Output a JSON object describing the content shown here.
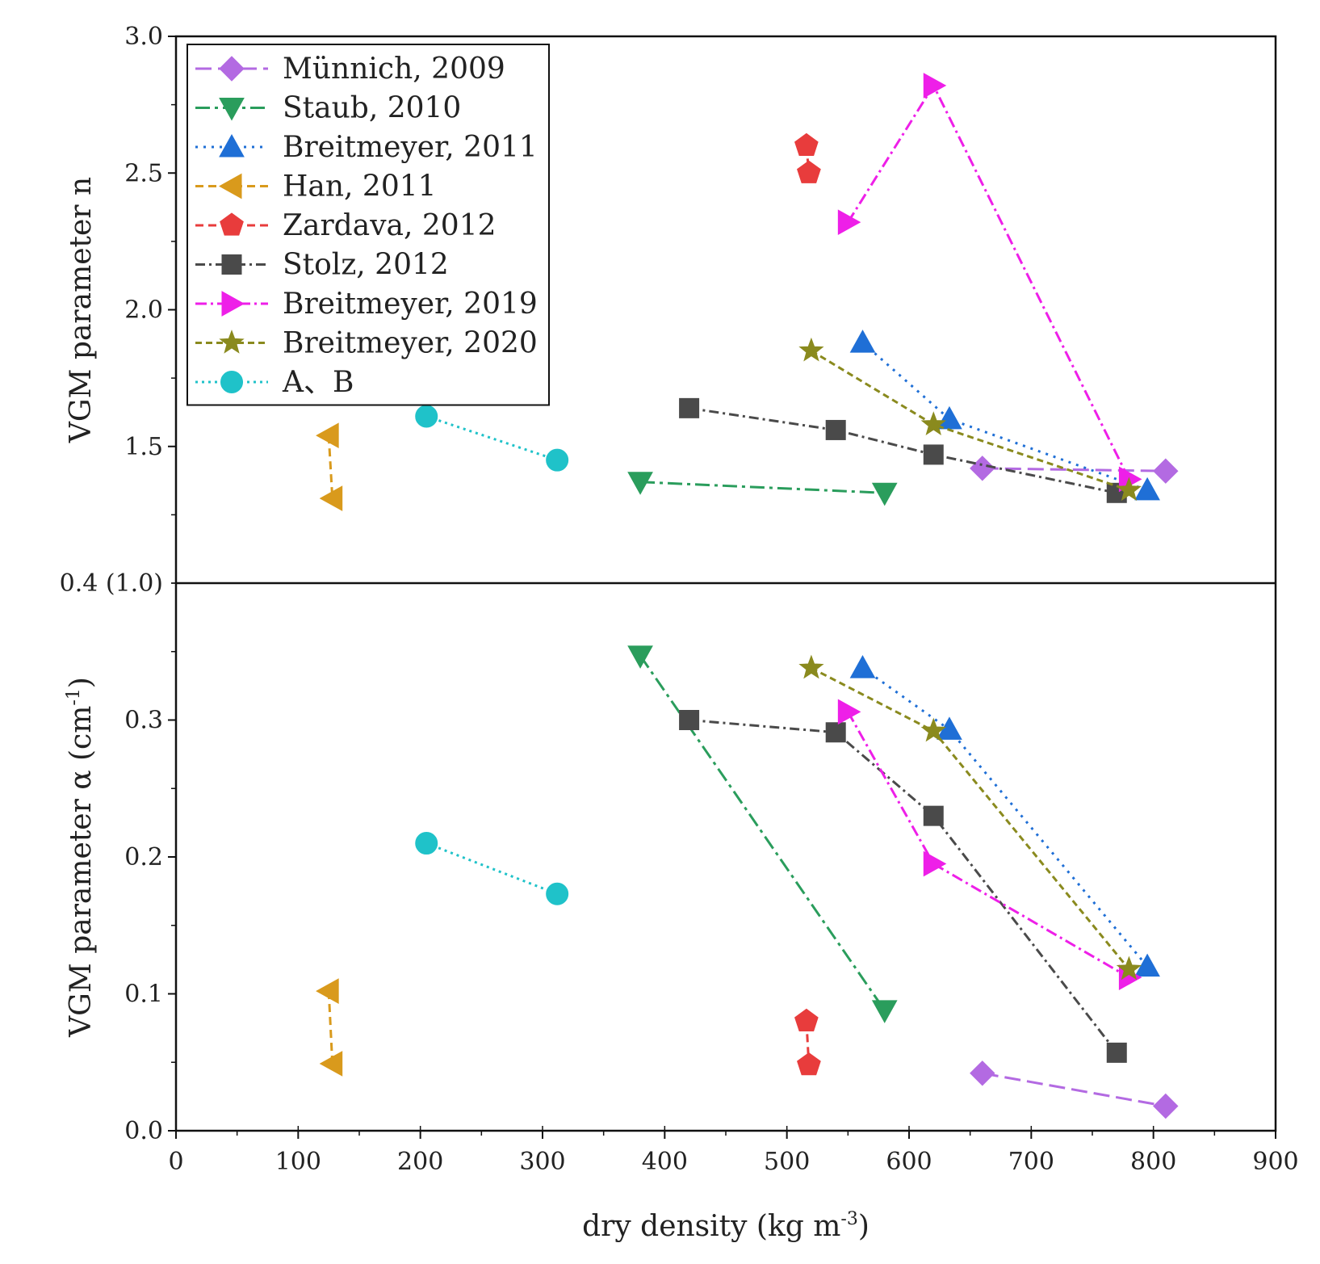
{
  "chart_data": {
    "type": "line",
    "xlabel": "dry density (kg m",
    "xlabel_sup": "-3",
    "xlabel_close": ")",
    "xlim": [
      0,
      900
    ],
    "x_ticks": [
      "0",
      "100",
      "200",
      "300",
      "400",
      "500",
      "600",
      "700",
      "800",
      "900"
    ],
    "grid": false,
    "legend_position": "top-left",
    "panels": [
      {
        "id": "n",
        "ylabel": "VGM parameter n",
        "ylim": [
          1.0,
          3.0
        ],
        "y_ticks": [
          {
            "v": 1.5,
            "t": "1.5"
          },
          {
            "v": 2.0,
            "t": "2.0"
          },
          {
            "v": 2.5,
            "t": "2.5"
          },
          {
            "v": 3.0,
            "t": "3.0"
          }
        ],
        "shared_tick_label": "0.4 (1.0)"
      },
      {
        "id": "alpha",
        "ylabel": "VGM parameter α (cm",
        "ylabel_sup": "-1",
        "ylabel_close": ")",
        "ylim": [
          0.0,
          0.4
        ],
        "y_ticks": [
          {
            "v": 0.0,
            "t": "0.0"
          },
          {
            "v": 0.1,
            "t": "0.1"
          },
          {
            "v": 0.2,
            "t": "0.2"
          },
          {
            "v": 0.3,
            "t": "0.3"
          }
        ]
      }
    ],
    "series": [
      {
        "name": "Münnich, 2009",
        "color": "#b36ae2",
        "marker": "diamond",
        "dash": "20,8",
        "x": [
          660,
          810
        ],
        "n": [
          1.42,
          1.41
        ],
        "alpha": [
          0.042,
          0.018
        ]
      },
      {
        "name": "Staub, 2010",
        "color": "#2a9d5c",
        "marker": "triangle-down",
        "dash": "18,6,4,6",
        "x": [
          380,
          580
        ],
        "n": [
          1.37,
          1.33
        ],
        "alpha": [
          0.347,
          0.088
        ]
      },
      {
        "name": "Breitmeyer, 2011",
        "color": "#1f6fd6",
        "marker": "triangle-up",
        "dash": "3,7",
        "x": [
          562,
          633,
          795
        ],
        "n": [
          1.88,
          1.6,
          1.34
        ],
        "alpha": [
          0.338,
          0.293,
          0.12
        ]
      },
      {
        "name": "Han, 2011",
        "color": "#d99a1c",
        "marker": "triangle-left",
        "dash": "10,6",
        "x": [
          125,
          128
        ],
        "n": [
          1.54,
          1.31
        ],
        "alpha": [
          0.102,
          0.049
        ]
      },
      {
        "name": "Zardava, 2012",
        "color": "#e83c3c",
        "marker": "pentagon",
        "dash": "10,6",
        "x": [
          516,
          518
        ],
        "n": [
          2.6,
          2.5
        ],
        "alpha": [
          0.08,
          0.048
        ]
      },
      {
        "name": "Stolz, 2012",
        "color": "#4a4a4a",
        "marker": "square",
        "dash": "12,5,3,5",
        "x": [
          420,
          540,
          620,
          770
        ],
        "n": [
          1.64,
          1.56,
          1.47,
          1.33
        ],
        "alpha": [
          0.3,
          0.291,
          0.23,
          0.057
        ]
      },
      {
        "name": "Breitmeyer, 2019",
        "color": "#ee1fe8",
        "marker": "triangle-right",
        "dash": "14,5,3,5",
        "x": [
          550,
          620,
          780
        ],
        "n": [
          2.32,
          2.82,
          1.38
        ],
        "alpha": [
          0.306,
          0.195,
          0.112
        ]
      },
      {
        "name": "Breitmeyer, 2020",
        "color": "#8a8a1e",
        "marker": "star",
        "dash": "8,5",
        "x": [
          520,
          620,
          780
        ],
        "n": [
          1.85,
          1.58,
          1.34
        ],
        "alpha": [
          0.338,
          0.292,
          0.118
        ]
      },
      {
        "name": "A、B",
        "color": "#1fc2c9",
        "marker": "circle",
        "dash": "3,5",
        "x": [
          205,
          312
        ],
        "n": [
          1.61,
          1.45
        ],
        "alpha": [
          0.21,
          0.173
        ]
      }
    ]
  }
}
